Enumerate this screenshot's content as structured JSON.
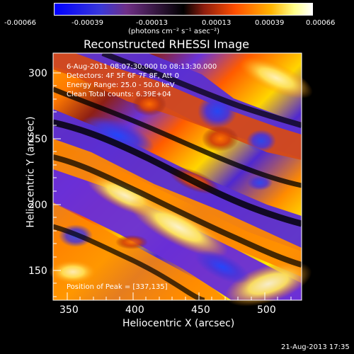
{
  "colorbar": {
    "ticks": [
      "-0.00066",
      "-0.00039",
      "-0.00013",
      "0.00013",
      "0.00039",
      "0.00066"
    ],
    "unit_label": "(photons cm⁻² s⁻¹ asec⁻²)"
  },
  "image": {
    "title": "Reconstructed RHESSI Image",
    "x_label": "Heliocentric X (arcsec)",
    "y_label": "Heliocentric Y (arcsec)",
    "x_ticks": [
      "350",
      "400",
      "450",
      "500"
    ],
    "y_ticks": [
      "300",
      "250",
      "200",
      "150"
    ],
    "info": {
      "time_range": "6-Aug-2011 08:07:30.000 to 08:13:30.000",
      "detectors": "Detectors: 4F 5F 6F 7F 8F, Att 0",
      "energy": "Energy Range: 25.0 - 50.0 keV",
      "counts": "Clean    Total counts: 6.39E+04"
    },
    "peak": "Position of Peak = [337,135]"
  },
  "footer": {
    "timestamp": "21-Aug-2013 17:35"
  },
  "colors": {
    "background": "#000000",
    "blue": "#1f4dff",
    "purple": "#5a2bd6",
    "orange": "#ff7a00",
    "yellow": "#fff35a",
    "white": "#ffffff"
  }
}
